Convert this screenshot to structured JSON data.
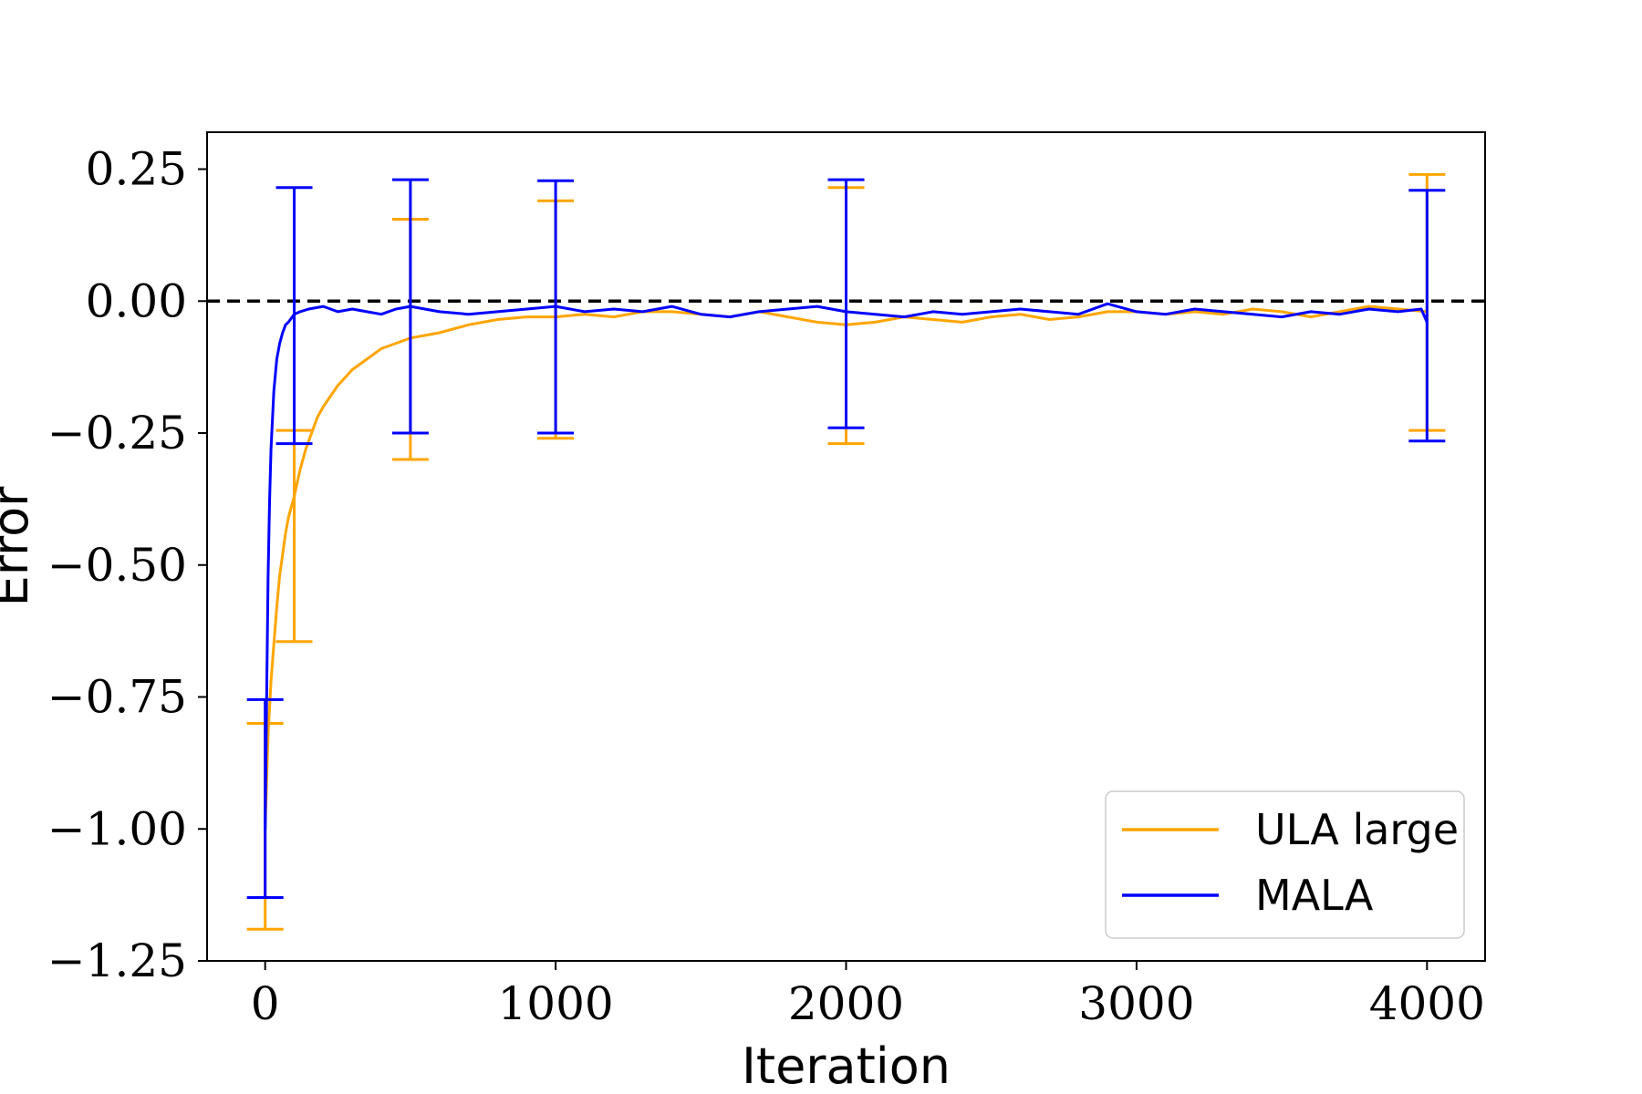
{
  "chart_data": {
    "type": "line",
    "title": "",
    "xlabel": "Iteration",
    "ylabel": "Error",
    "xlim": [
      -200,
      4200
    ],
    "ylim": [
      -1.25,
      0.32
    ],
    "xticks": [
      0,
      1000,
      2000,
      3000,
      4000
    ],
    "xtick_labels": [
      "0",
      "1000",
      "2000",
      "3000",
      "4000"
    ],
    "yticks": [
      0.25,
      0.0,
      -0.25,
      -0.5,
      -0.75,
      -1.0,
      -1.25
    ],
    "ytick_labels": [
      "0.25",
      "0.00",
      "−0.25",
      "−0.50",
      "−0.75",
      "−1.00",
      "−1.25"
    ],
    "reference_line": {
      "y": 0.0,
      "style": "dashed",
      "color": "#000000"
    },
    "legend_position": "lower-right",
    "series": [
      {
        "name": "ULA large",
        "color": "#FFA500",
        "x": [
          0,
          10,
          20,
          30,
          40,
          50,
          60,
          70,
          80,
          90,
          100,
          120,
          140,
          160,
          180,
          200,
          250,
          300,
          350,
          400,
          450,
          500,
          550,
          600,
          700,
          800,
          900,
          1000,
          1100,
          1200,
          1300,
          1400,
          1500,
          1600,
          1700,
          1800,
          1900,
          2000,
          2100,
          2200,
          2300,
          2400,
          2500,
          2600,
          2700,
          2800,
          2900,
          3000,
          3100,
          3200,
          3300,
          3400,
          3500,
          3600,
          3700,
          3800,
          3900,
          4000
        ],
        "values": [
          -1.0,
          -0.82,
          -0.72,
          -0.65,
          -0.58,
          -0.52,
          -0.48,
          -0.44,
          -0.41,
          -0.39,
          -0.37,
          -0.32,
          -0.28,
          -0.25,
          -0.22,
          -0.2,
          -0.16,
          -0.13,
          -0.11,
          -0.09,
          -0.08,
          -0.07,
          -0.065,
          -0.06,
          -0.045,
          -0.035,
          -0.03,
          -0.03,
          -0.025,
          -0.03,
          -0.02,
          -0.02,
          -0.025,
          -0.03,
          -0.02,
          -0.03,
          -0.04,
          -0.045,
          -0.04,
          -0.03,
          -0.035,
          -0.04,
          -0.03,
          -0.025,
          -0.035,
          -0.03,
          -0.02,
          -0.02,
          -0.025,
          -0.02,
          -0.025,
          -0.015,
          -0.02,
          -0.03,
          -0.02,
          -0.01,
          -0.015,
          -0.02
        ],
        "error_bars": [
          {
            "x": 0,
            "low": -1.19,
            "high": -0.8
          },
          {
            "x": 100,
            "low": -0.645,
            "high": -0.245
          },
          {
            "x": 500,
            "low": -0.3,
            "high": 0.155
          },
          {
            "x": 1000,
            "low": -0.26,
            "high": 0.19
          },
          {
            "x": 2000,
            "low": -0.27,
            "high": 0.215
          },
          {
            "x": 4000,
            "low": -0.245,
            "high": 0.24
          }
        ]
      },
      {
        "name": "MALA",
        "color": "#0000FF",
        "x": [
          0,
          5,
          10,
          15,
          20,
          30,
          40,
          50,
          60,
          70,
          80,
          100,
          120,
          150,
          200,
          250,
          300,
          350,
          400,
          450,
          500,
          600,
          700,
          800,
          900,
          1000,
          1100,
          1200,
          1300,
          1400,
          1500,
          1600,
          1700,
          1800,
          1900,
          2000,
          2100,
          2200,
          2300,
          2400,
          2500,
          2600,
          2700,
          2800,
          2900,
          3000,
          3100,
          3200,
          3300,
          3400,
          3500,
          3600,
          3700,
          3800,
          3900,
          3980,
          4000
        ],
        "values": [
          -1.0,
          -0.75,
          -0.52,
          -0.38,
          -0.28,
          -0.17,
          -0.11,
          -0.08,
          -0.06,
          -0.045,
          -0.04,
          -0.025,
          -0.02,
          -0.015,
          -0.01,
          -0.02,
          -0.015,
          -0.02,
          -0.025,
          -0.015,
          -0.01,
          -0.02,
          -0.025,
          -0.02,
          -0.015,
          -0.01,
          -0.02,
          -0.015,
          -0.02,
          -0.01,
          -0.025,
          -0.03,
          -0.02,
          -0.015,
          -0.01,
          -0.02,
          -0.025,
          -0.03,
          -0.02,
          -0.025,
          -0.02,
          -0.015,
          -0.02,
          -0.025,
          -0.005,
          -0.02,
          -0.025,
          -0.015,
          -0.02,
          -0.025,
          -0.03,
          -0.02,
          -0.025,
          -0.015,
          -0.02,
          -0.015,
          -0.04
        ],
        "error_bars": [
          {
            "x": 0,
            "low": -1.13,
            "high": -0.755
          },
          {
            "x": 100,
            "low": -0.27,
            "high": 0.215
          },
          {
            "x": 500,
            "low": -0.25,
            "high": 0.23
          },
          {
            "x": 1000,
            "low": -0.25,
            "high": 0.228
          },
          {
            "x": 2000,
            "low": -0.24,
            "high": 0.23
          },
          {
            "x": 4000,
            "low": -0.265,
            "high": 0.21
          }
        ]
      }
    ]
  }
}
